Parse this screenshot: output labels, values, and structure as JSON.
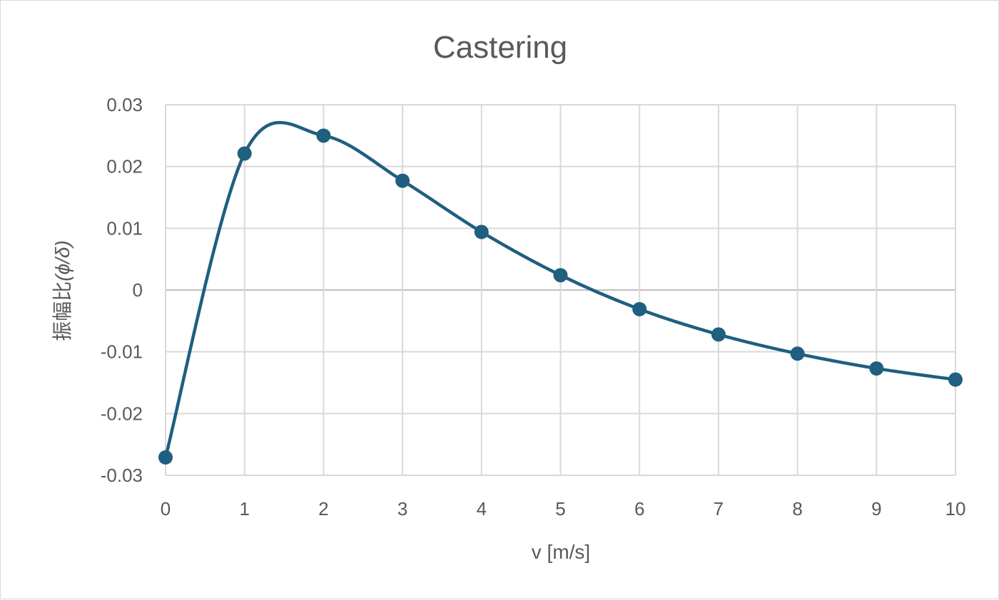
{
  "chart_data": {
    "type": "scatter",
    "title": "Castering",
    "xlabel": "v [m/s]",
    "ylabel_prefix": "振幅比",
    "ylabel_math": "(ϕ/δ)",
    "xlim": [
      0,
      10
    ],
    "ylim": [
      -0.03,
      0.03
    ],
    "x_ticks": [
      "0",
      "1",
      "2",
      "3",
      "4",
      "5",
      "6",
      "7",
      "8",
      "9",
      "10"
    ],
    "y_ticks": [
      "0.03",
      "0.02",
      "0.01",
      "0",
      "-0.01",
      "-0.02",
      "-0.03"
    ],
    "grid": true,
    "smooth_line": true,
    "series": [
      {
        "x": [
          0,
          1,
          2,
          3,
          4,
          5,
          6,
          7,
          8,
          9,
          10
        ],
        "y": [
          -0.0271,
          0.0221,
          0.025,
          0.0177,
          0.0094,
          0.0024,
          -0.0031,
          -0.0072,
          -0.0103,
          -0.0127,
          -0.0145
        ],
        "color": "#1f5f80"
      }
    ]
  }
}
